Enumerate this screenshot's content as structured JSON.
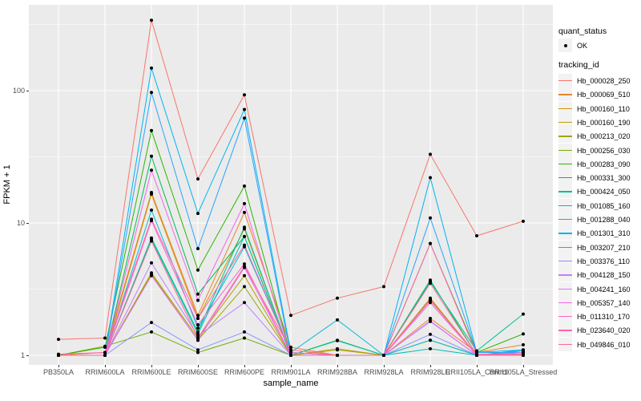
{
  "figure": {
    "background": "#FFFFFF",
    "panel_background": "#EBEBEB",
    "grid_color": "#FFFFFF",
    "axis_text_color": "#4D4D4D",
    "point_color": "#000000"
  },
  "axes": {
    "x_title": "sample_name",
    "y_title": "FPKM + 1",
    "y_tick_labels": [
      "1",
      "10",
      "100"
    ]
  },
  "legend": {
    "quant_title": "quant_status",
    "quant_items": [
      {
        "label": "OK",
        "marker": "black-point"
      }
    ],
    "tracking_title": "tracking_id"
  },
  "chart_data": {
    "type": "line",
    "title": "",
    "xlabel": "sample_name",
    "ylabel": "FPKM + 1",
    "y_scale": "log10",
    "y_ticks": [
      1,
      10,
      100
    ],
    "y_minor_gridlines": [
      3.162,
      31.62,
      316.2
    ],
    "ylim": [
      0.93,
      470
    ],
    "grid": true,
    "legend_position": "right",
    "point_shape": "small-black-circle",
    "quant_status": {
      "title": "quant_status",
      "items": [
        "OK"
      ]
    },
    "categories": [
      "PB350LA",
      "RRIM600LA",
      "RRIM600LE",
      "RRIM600SE",
      "RRIM600PE",
      "RRIM901LA",
      "RRIM928BA",
      "RRIM928LA",
      "RRIM928LE",
      "RRII105LA_Control",
      "RRII105LA_Stressed"
    ],
    "series": [
      {
        "name": "Hb_000028_250",
        "color": "#F8766D",
        "values": [
          1.32,
          1.35,
          340,
          21.5,
          93,
          2.0,
          2.7,
          3.3,
          33,
          8.0,
          10.3
        ]
      },
      {
        "name": "Hb_000069_510",
        "color": "#E9842C",
        "values": [
          1.0,
          1.05,
          17,
          2.0,
          12,
          1.15,
          1.0,
          1.0,
          1.9,
          1.05,
          1.2
        ]
      },
      {
        "name": "Hb_000160_110",
        "color": "#D69100",
        "values": [
          1.0,
          1.0,
          16.5,
          1.9,
          9.0,
          1.0,
          1.0,
          1.0,
          2.7,
          1.0,
          1.05
        ]
      },
      {
        "name": "Hb_000160_190",
        "color": "#BC9D00",
        "values": [
          1.0,
          1.0,
          4.2,
          1.35,
          4.0,
          1.0,
          1.12,
          1.0,
          2.65,
          1.0,
          1.05
        ]
      },
      {
        "name": "Hb_000213_020",
        "color": "#9CA700",
        "values": [
          1.0,
          1.0,
          4.1,
          1.3,
          3.3,
          1.0,
          1.1,
          1.0,
          2.6,
          1.0,
          1.02
        ]
      },
      {
        "name": "Hb_000256_030",
        "color": "#72B000",
        "values": [
          1.0,
          1.17,
          1.5,
          1.05,
          1.35,
          1.0,
          1.0,
          1.0,
          1.3,
          1.0,
          1.02
        ]
      },
      {
        "name": "Hb_000283_090",
        "color": "#2CB600",
        "values": [
          1.0,
          1.15,
          50,
          4.4,
          19,
          1.0,
          1.3,
          1.0,
          7.0,
          1.05,
          1.45
        ]
      },
      {
        "name": "Hb_000331_300",
        "color": "#00BB58",
        "values": [
          1.0,
          1.0,
          32,
          2.9,
          7.9,
          1.0,
          1.0,
          1.0,
          3.7,
          1.0,
          1.05
        ]
      },
      {
        "name": "Hb_000424_050",
        "color": "#00C08D",
        "values": [
          1.0,
          1.0,
          7.7,
          1.5,
          9.3,
          1.0,
          1.0,
          1.0,
          3.6,
          1.08,
          2.05
        ]
      },
      {
        "name": "Hb_001085_160",
        "color": "#00C0B4",
        "values": [
          1.0,
          1.0,
          7.5,
          1.45,
          7.9,
          1.0,
          1.29,
          1.0,
          1.12,
          1.0,
          1.1
        ]
      },
      {
        "name": "Hb_001288_040",
        "color": "#00BCD6",
        "values": [
          1.0,
          1.0,
          12.5,
          1.6,
          6.6,
          1.05,
          1.85,
          1.0,
          1.3,
          1.0,
          1.08
        ]
      },
      {
        "name": "Hb_001301_310",
        "color": "#00B3F2",
        "values": [
          1.0,
          1.0,
          148,
          11.8,
          72,
          1.05,
          1.0,
          1.0,
          22,
          1.05,
          1.1
        ]
      },
      {
        "name": "Hb_003207_210",
        "color": "#29A3FF",
        "values": [
          1.0,
          1.0,
          97,
          6.4,
          62,
          1.0,
          1.0,
          1.0,
          10.9,
          1.05,
          1.05
        ]
      },
      {
        "name": "Hb_003376_110",
        "color": "#8B93FF",
        "values": [
          1.0,
          1.0,
          1.77,
          1.1,
          1.5,
          1.0,
          1.0,
          1.0,
          1.44,
          1.0,
          1.0
        ]
      },
      {
        "name": "Hb_004128_150",
        "color": "#BC81FF",
        "values": [
          1.0,
          1.0,
          5.0,
          1.4,
          2.5,
          1.0,
          1.0,
          1.0,
          1.8,
          1.0,
          1.0
        ]
      },
      {
        "name": "Hb_004241_160",
        "color": "#DF70F8",
        "values": [
          1.0,
          1.0,
          4.0,
          1.3,
          4.6,
          1.0,
          1.0,
          1.0,
          1.82,
          1.0,
          1.0
        ]
      },
      {
        "name": "Hb_005357_140",
        "color": "#F365E7",
        "values": [
          1.0,
          1.0,
          25,
          2.6,
          14,
          1.0,
          1.0,
          1.0,
          2.6,
          1.0,
          1.05
        ]
      },
      {
        "name": "Hb_011310_170",
        "color": "#FF61CC",
        "values": [
          1.0,
          1.0,
          10.4,
          1.7,
          4.9,
          1.0,
          1.0,
          1.0,
          2.5,
          1.0,
          1.0
        ]
      },
      {
        "name": "Hb_023640_020",
        "color": "#FF64B0",
        "values": [
          1.02,
          1.05,
          10.7,
          1.9,
          6.8,
          1.05,
          1.0,
          1.0,
          7.0,
          1.02,
          1.02
        ]
      },
      {
        "name": "Hb_049846_010",
        "color": "#FF6B94",
        "values": [
          1.0,
          1.0,
          7.3,
          1.35,
          4.7,
          1.1,
          1.0,
          1.0,
          3.5,
          1.0,
          1.02
        ]
      }
    ]
  }
}
